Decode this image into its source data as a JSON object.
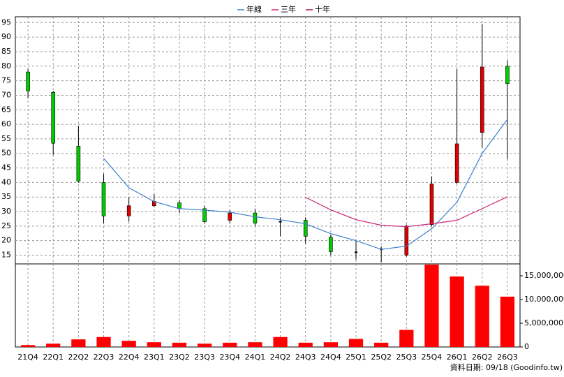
{
  "chart_data": [
    {
      "type": "candlestick",
      "open": [
        78,
        71,
        52.5,
        40,
        28.5,
        32,
        33,
        31,
        27,
        29.5,
        26.5,
        27,
        21.2,
        16,
        17,
        15,
        25.5,
        40,
        57.2,
        80
      ],
      "high": [
        79,
        71.5,
        59.5,
        43,
        35,
        36,
        34,
        32,
        30.5,
        31,
        28,
        28,
        22,
        20,
        18,
        25.5,
        42,
        79,
        94.5,
        82
      ],
      "low": [
        69,
        49.5,
        40,
        26,
        26.5,
        31.5,
        29.5,
        26,
        26,
        25,
        21.5,
        19,
        15,
        13.5,
        12.5,
        14.5,
        25,
        39.5,
        52,
        48
      ],
      "close": [
        71.5,
        53.5,
        40.5,
        28.5,
        32,
        33.5,
        31,
        26.5,
        29.5,
        26,
        26.5,
        21.5,
        16.2,
        16,
        17,
        25,
        39.5,
        53.3,
        79.7,
        74
      ],
      "up_color": "#e00000",
      "down_color": "#00cc00",
      "flat_color": "#000000",
      "series": [
        {
          "name": "年線",
          "color": "#3b7fd0",
          "values": [
            null,
            null,
            null,
            48.3,
            38.2,
            33.4,
            31,
            30.5,
            29.8,
            28.2,
            27.2,
            25.8,
            22.4,
            20,
            17,
            18.1,
            24.1,
            33.2,
            50,
            61.7
          ]
        },
        {
          "name": "三年",
          "color": "#cc2277",
          "values": [
            null,
            null,
            null,
            null,
            null,
            null,
            null,
            null,
            null,
            null,
            null,
            34.9,
            30.6,
            27.2,
            25.3,
            24.8,
            25.8,
            27,
            31,
            35.1
          ]
        },
        {
          "name": "十年",
          "color": "#aa1144",
          "values": [
            null,
            null,
            null,
            null,
            null,
            null,
            null,
            null,
            null,
            null,
            null,
            null,
            null,
            null,
            null,
            null,
            null,
            null,
            null,
            null
          ]
        }
      ],
      "ylim": [
        12,
        97
      ],
      "yticks": [
        15,
        20,
        25,
        30,
        35,
        40,
        45,
        50,
        55,
        60,
        65,
        70,
        75,
        80,
        85,
        90,
        95
      ],
      "grid": true
    },
    {
      "type": "bar",
      "categories": [
        "21Q4",
        "22Q1",
        "22Q2",
        "22Q3",
        "22Q4",
        "23Q1",
        "23Q2",
        "23Q3",
        "23Q4",
        "24Q1",
        "24Q2",
        "24Q3",
        "24Q4",
        "25Q1",
        "25Q2",
        "25Q3",
        "25Q4",
        "26Q1",
        "26Q2",
        "26Q3"
      ],
      "values": [
        400000,
        700000,
        1600000,
        2100000,
        1300000,
        1000000,
        900000,
        700000,
        900000,
        1000000,
        2100000,
        900000,
        1000000,
        1700000,
        900000,
        3600000,
        17350000,
        14850000,
        12900000,
        10600000
      ],
      "color": "#ff0000",
      "ylim": [
        0,
        17500000
      ],
      "yticks": [
        0,
        {
          "value": 5000000,
          "label": "5,000,000"
        },
        {
          "value": 10000000,
          "label": "10,000,000"
        },
        {
          "value": 15000000,
          "label": "15,000,000"
        }
      ],
      "grid": true,
      "source": "資料日期: 09/18  (Goodinfo.tw)"
    }
  ]
}
